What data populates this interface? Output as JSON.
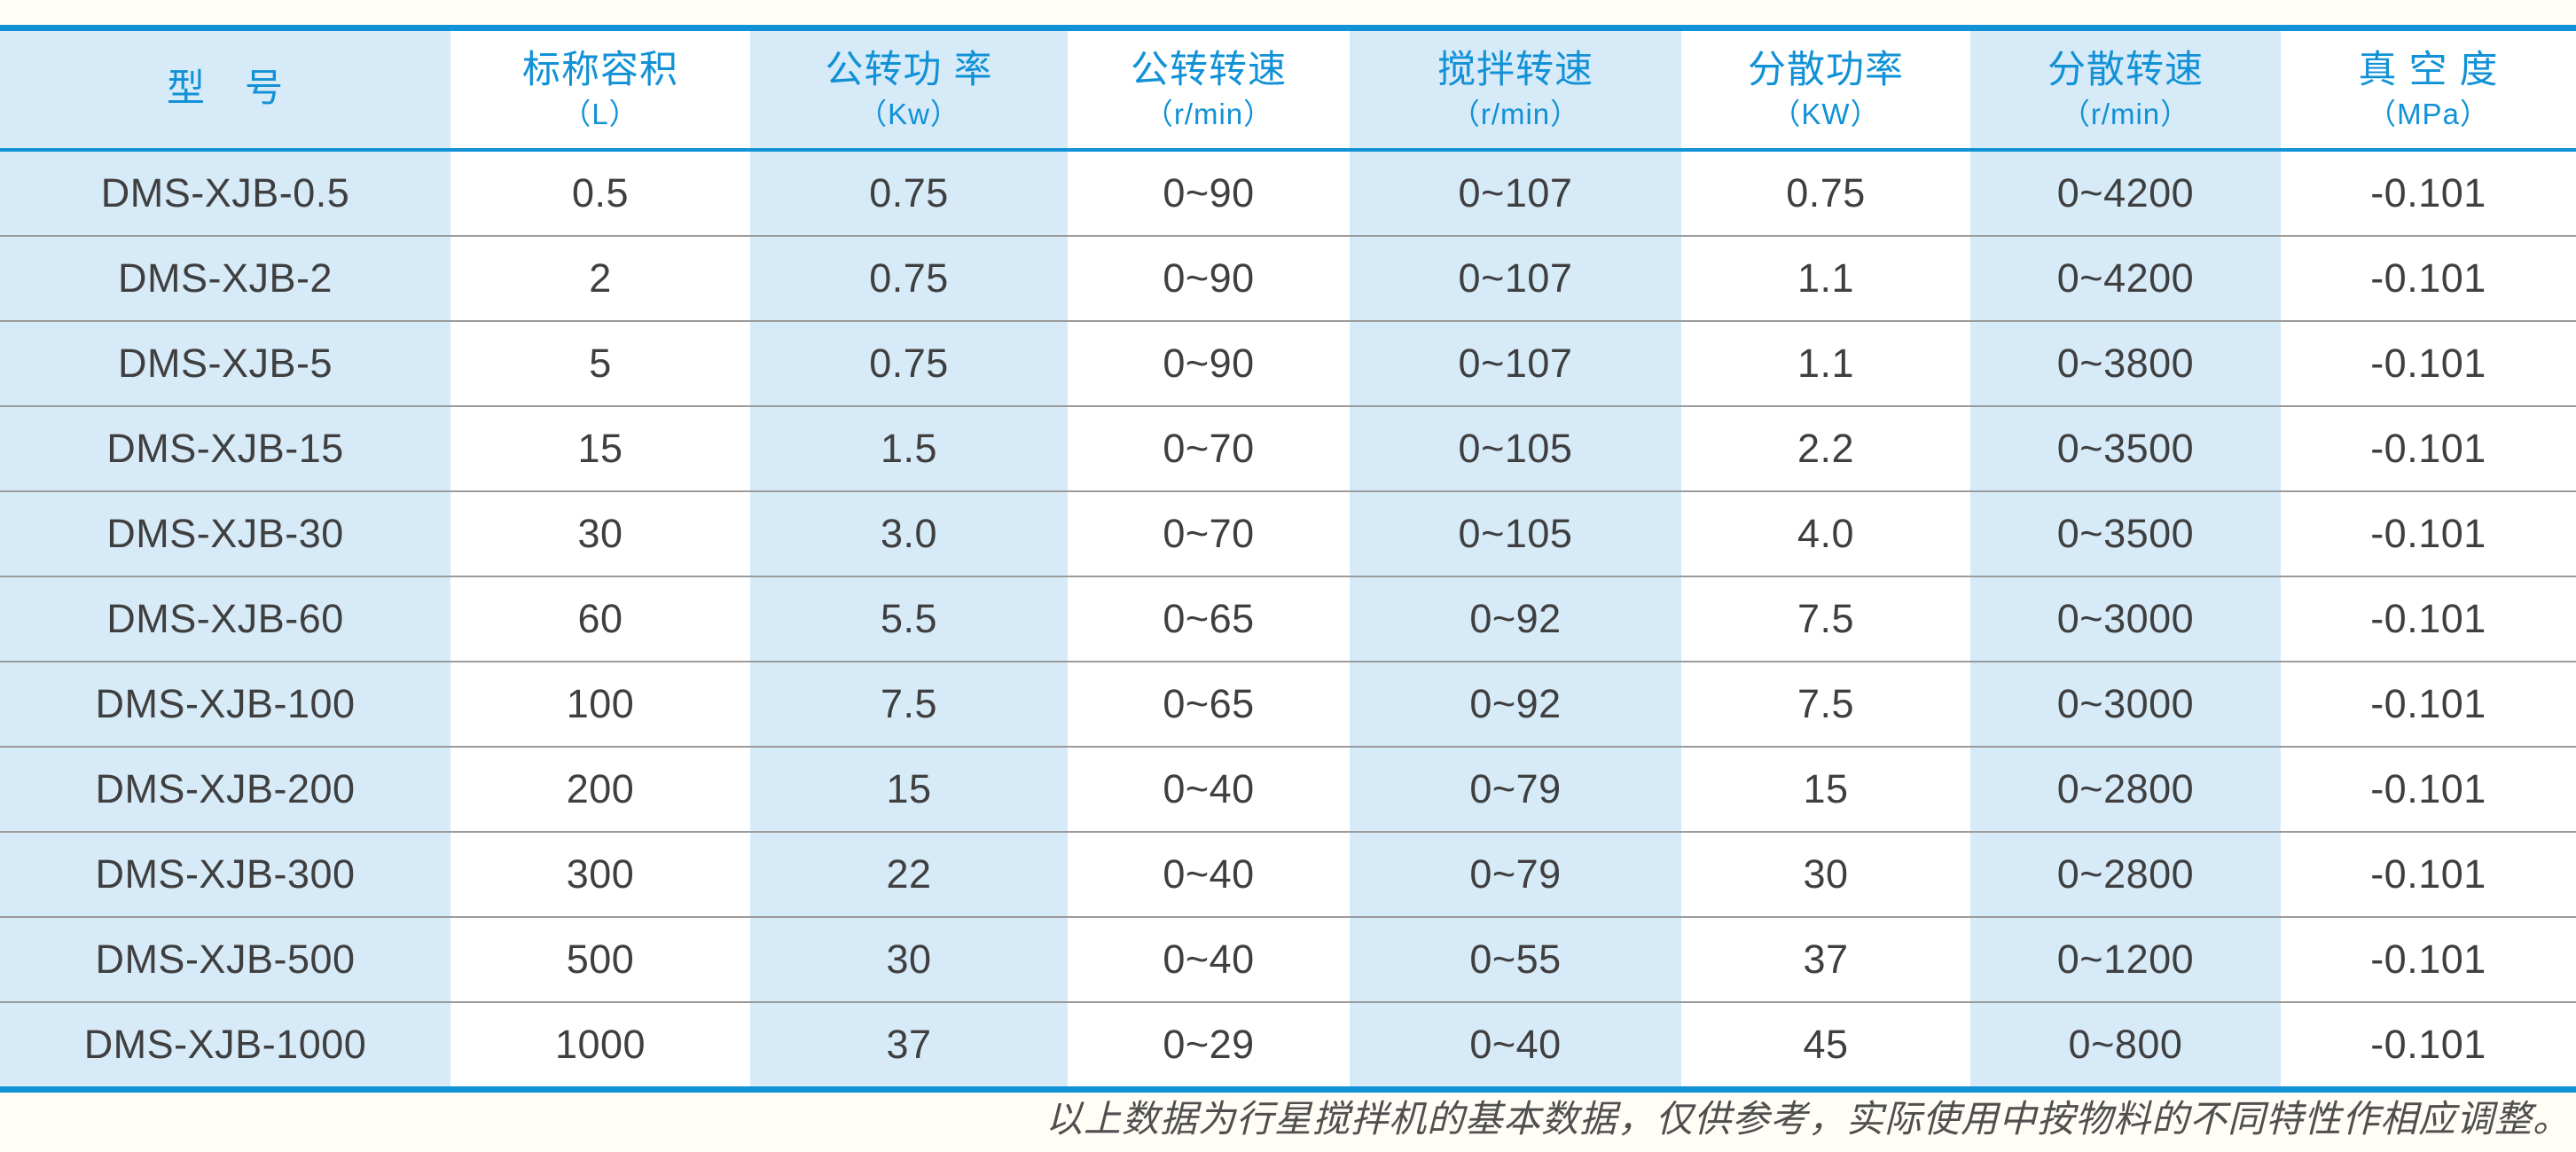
{
  "theme": {
    "accent_blue": "#1191d6",
    "light_blue_cell": "#d7eaf8",
    "row_divider_gray": "#9b9b9b",
    "body_text": "#3f3f3f",
    "page_background": "#fffdf6"
  },
  "table": {
    "columns": [
      {
        "key": "model",
        "label": "型　号",
        "unit": ""
      },
      {
        "key": "capacity",
        "label": "标称容积",
        "unit": "（L）"
      },
      {
        "key": "rev_power",
        "label": "公转功 率",
        "unit": "（Kw）"
      },
      {
        "key": "rev_speed",
        "label": "公转转速",
        "unit": "（r/min）"
      },
      {
        "key": "stir_speed",
        "label": "搅拌转速",
        "unit": "（r/min）"
      },
      {
        "key": "disp_power",
        "label": "分散功率",
        "unit": "（KW）"
      },
      {
        "key": "disp_speed",
        "label": "分散转速",
        "unit": "（r/min）"
      },
      {
        "key": "vacuum",
        "label": "真 空 度",
        "unit": "（MPa）"
      }
    ],
    "rows": [
      {
        "model": "DMS-XJB-0.5",
        "capacity": "0.5",
        "rev_power": "0.75",
        "rev_speed": "0~90",
        "stir_speed": "0~107",
        "disp_power": "0.75",
        "disp_speed": "0~4200",
        "vacuum": "-0.101"
      },
      {
        "model": "DMS-XJB-2",
        "capacity": "2",
        "rev_power": "0.75",
        "rev_speed": "0~90",
        "stir_speed": "0~107",
        "disp_power": "1.1",
        "disp_speed": "0~4200",
        "vacuum": "-0.101"
      },
      {
        "model": "DMS-XJB-5",
        "capacity": "5",
        "rev_power": "0.75",
        "rev_speed": "0~90",
        "stir_speed": "0~107",
        "disp_power": "1.1",
        "disp_speed": "0~3800",
        "vacuum": "-0.101"
      },
      {
        "model": "DMS-XJB-15",
        "capacity": "15",
        "rev_power": "1.5",
        "rev_speed": "0~70",
        "stir_speed": "0~105",
        "disp_power": "2.2",
        "disp_speed": "0~3500",
        "vacuum": "-0.101"
      },
      {
        "model": "DMS-XJB-30",
        "capacity": "30",
        "rev_power": "3.0",
        "rev_speed": "0~70",
        "stir_speed": "0~105",
        "disp_power": "4.0",
        "disp_speed": "0~3500",
        "vacuum": "-0.101"
      },
      {
        "model": "DMS-XJB-60",
        "capacity": "60",
        "rev_power": "5.5",
        "rev_speed": "0~65",
        "stir_speed": "0~92",
        "disp_power": "7.5",
        "disp_speed": "0~3000",
        "vacuum": "-0.101"
      },
      {
        "model": "DMS-XJB-100",
        "capacity": "100",
        "rev_power": "7.5",
        "rev_speed": "0~65",
        "stir_speed": "0~92",
        "disp_power": "7.5",
        "disp_speed": "0~3000",
        "vacuum": "-0.101"
      },
      {
        "model": "DMS-XJB-200",
        "capacity": "200",
        "rev_power": "15",
        "rev_speed": "0~40",
        "stir_speed": "0~79",
        "disp_power": "15",
        "disp_speed": "0~2800",
        "vacuum": "-0.101"
      },
      {
        "model": "DMS-XJB-300",
        "capacity": "300",
        "rev_power": "22",
        "rev_speed": "0~40",
        "stir_speed": "0~79",
        "disp_power": "30",
        "disp_speed": "0~2800",
        "vacuum": "-0.101"
      },
      {
        "model": "DMS-XJB-500",
        "capacity": "500",
        "rev_power": "30",
        "rev_speed": "0~40",
        "stir_speed": "0~55",
        "disp_power": "37",
        "disp_speed": "0~1200",
        "vacuum": "-0.101"
      },
      {
        "model": "DMS-XJB-1000",
        "capacity": "1000",
        "rev_power": "37",
        "rev_speed": "0~29",
        "stir_speed": "0~40",
        "disp_power": "45",
        "disp_speed": "0~800",
        "vacuum": "-0.101"
      }
    ]
  },
  "footer": {
    "note": "以上数据为行星搅拌机的基本数据，仅供参考，实际使用中按物料的不同特性作相应调整。"
  }
}
